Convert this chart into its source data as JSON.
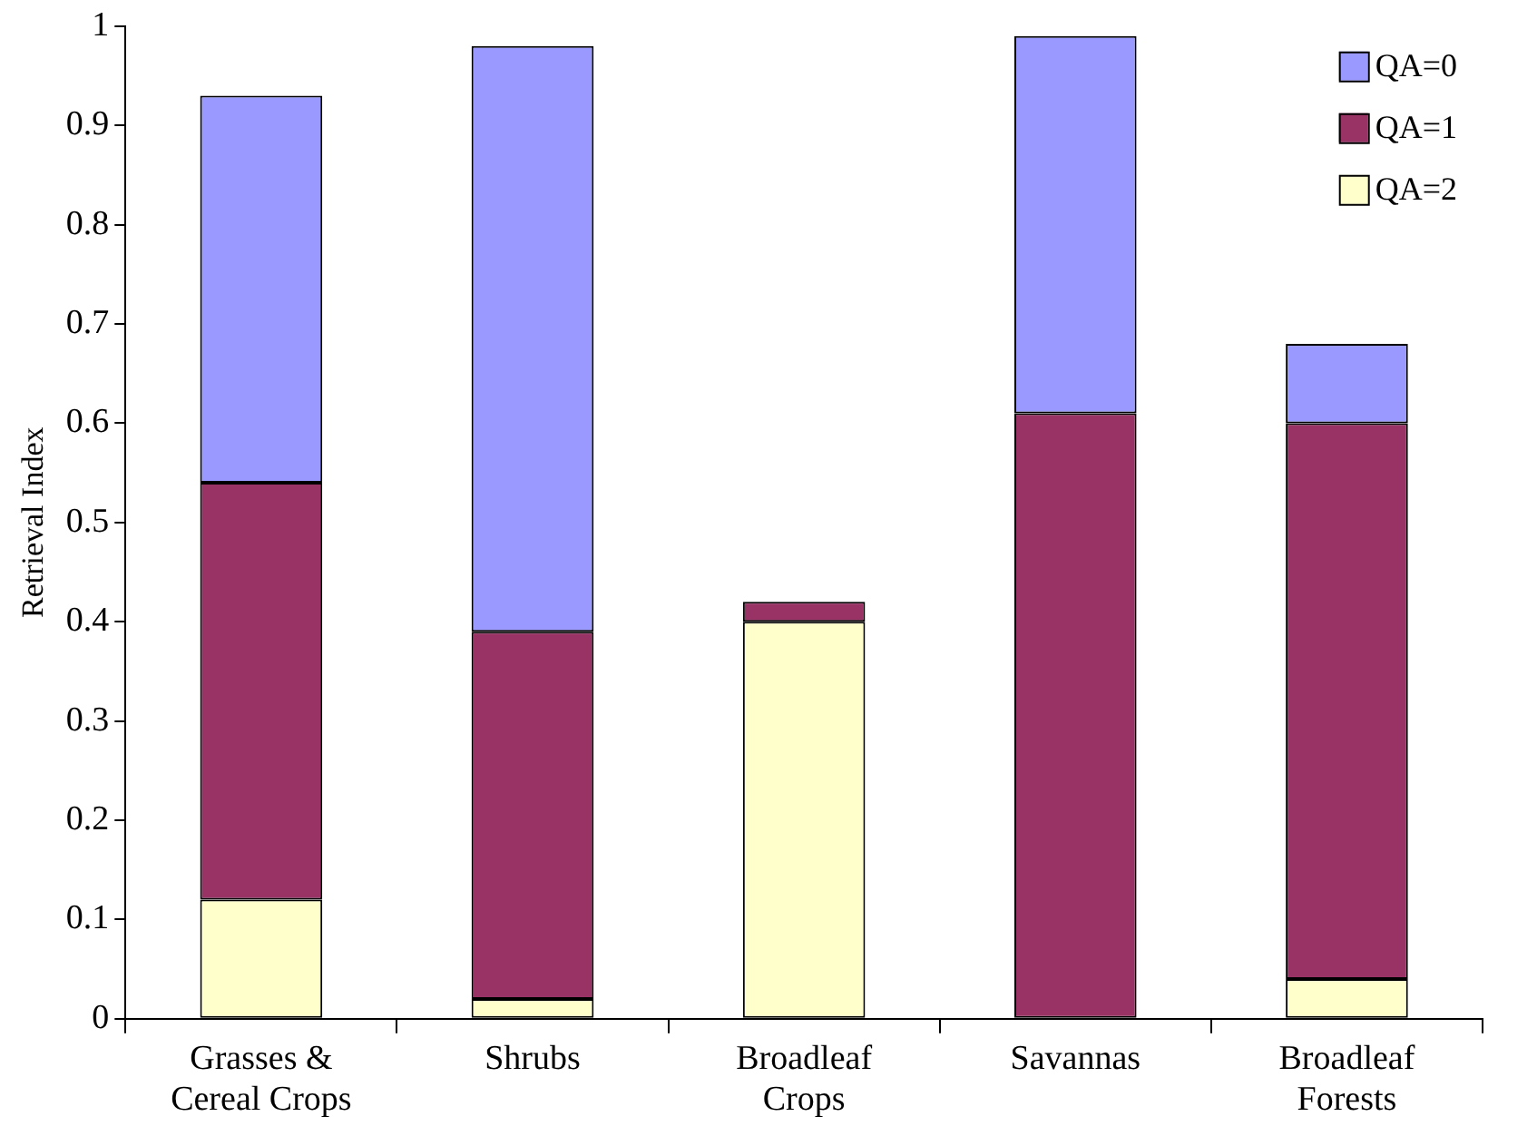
{
  "chart_data": {
    "type": "bar",
    "stacked": true,
    "ylabel": "Retrieval Index",
    "categories": [
      "Grasses &\nCereal Crops",
      "Shrubs",
      "Broadleaf\nCrops",
      "Savannas",
      "Broadleaf\nForests"
    ],
    "series": [
      {
        "name": "QA=2",
        "color": "#ffffcc",
        "values": [
          0.12,
          0.02,
          0.4,
          0,
          0.04
        ]
      },
      {
        "name": "QA=1",
        "color": "#993366",
        "values": [
          0.42,
          0.37,
          0.02,
          0.61,
          0.56
        ]
      },
      {
        "name": "QA=0",
        "color": "#9999ff",
        "values": [
          0.39,
          0.59,
          0,
          0.38,
          0.08
        ]
      }
    ],
    "ylim": [
      0,
      1
    ],
    "yticks": [
      0,
      0.1,
      0.2,
      0.3,
      0.4,
      0.5,
      0.6,
      0.7,
      0.8,
      0.9,
      1
    ],
    "grid": false,
    "legend": "top right"
  }
}
